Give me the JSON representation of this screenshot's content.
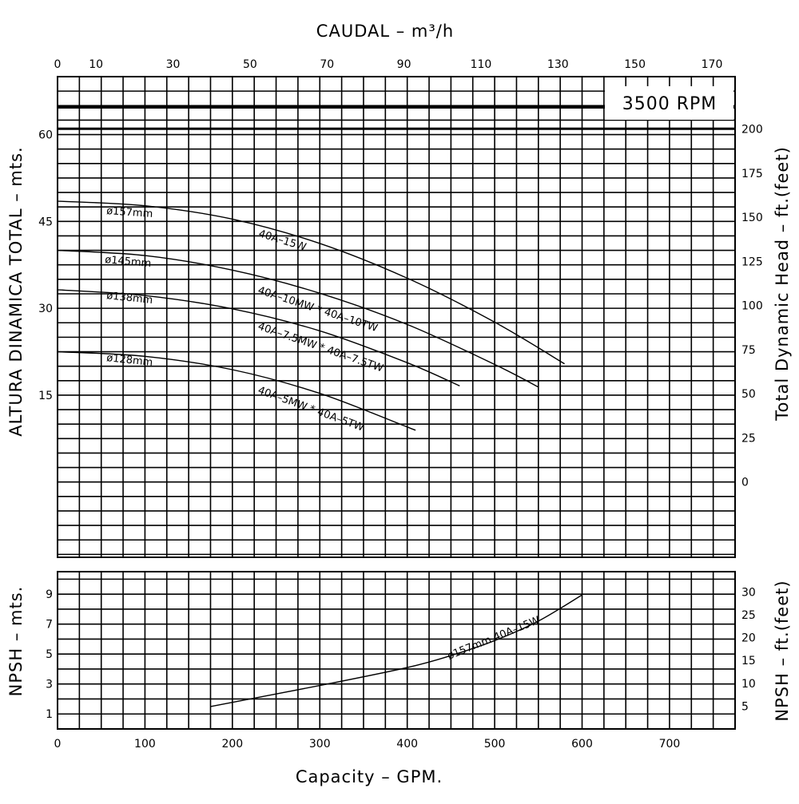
{
  "chart_data": [
    {
      "type": "line",
      "title": "3500 RPM",
      "top_xlabel": "CAUDAL – m³/h",
      "top_xticks": [
        0,
        10,
        30,
        50,
        70,
        90,
        110,
        130,
        150,
        170
      ],
      "xlabel": "Capacity – GPM.",
      "xticks": [
        0,
        100,
        200,
        300,
        400,
        500,
        600,
        700
      ],
      "xlim": [
        0,
        775
      ],
      "ylabel": "ALTURA DINAMICA TOTAL – mts.",
      "yticks": [
        15,
        30,
        45,
        60
      ],
      "ylim": [
        -13,
        70
      ],
      "right_ylabel": "Total Dynamic Head – ft.(feet)",
      "right_yticks": [
        0,
        25,
        50,
        75,
        100,
        125,
        150,
        175,
        200
      ],
      "grid": true,
      "series": [
        {
          "name": "ø157mm",
          "model": "40A–15W",
          "x": [
            0,
            100,
            200,
            300,
            400,
            500,
            580
          ],
          "y": [
            48.5,
            47.7,
            45.4,
            41.2,
            35.2,
            27.6,
            20.4
          ]
        },
        {
          "name": "ø145mm",
          "model": "40A–10MW * 40A–10TW",
          "x": [
            0,
            100,
            200,
            300,
            400,
            500,
            550
          ],
          "y": [
            40,
            39.1,
            36.6,
            32.6,
            27.2,
            20.3,
            16.4
          ]
        },
        {
          "name": "ø138mm",
          "model": "40A–7.5MW * 40A–7.5TW",
          "x": [
            0,
            100,
            200,
            300,
            400,
            460
          ],
          "y": [
            33.2,
            32.2,
            29.9,
            26.1,
            20.6,
            16.6
          ]
        },
        {
          "name": "ø128mm",
          "model": "40A–5MW * 40A–5TW",
          "x": [
            0,
            100,
            200,
            300,
            400,
            405
          ],
          "y": [
            22.5,
            21.7,
            19.4,
            15.3,
            9.5,
            9.2
          ]
        }
      ]
    },
    {
      "type": "line",
      "xlabel": "Capacity – GPM.",
      "xticks": [
        0,
        100,
        200,
        300,
        400,
        500,
        600,
        700
      ],
      "xlim": [
        0,
        775
      ],
      "ylabel": "NPSH – mts.",
      "yticks": [
        1,
        3,
        5,
        7,
        9
      ],
      "ylim": [
        0,
        10.5
      ],
      "right_ylabel": "NPSH – ft.(feet)",
      "right_yticks": [
        5,
        10,
        15,
        20,
        25,
        30
      ],
      "grid": true,
      "series": [
        {
          "name": "ø157mm 40A–15W",
          "x": [
            175,
            300,
            400,
            450,
            500,
            550,
            600
          ],
          "y": [
            1.5,
            2.9,
            4.1,
            4.9,
            5.9,
            7.2,
            8.95
          ]
        }
      ]
    }
  ]
}
